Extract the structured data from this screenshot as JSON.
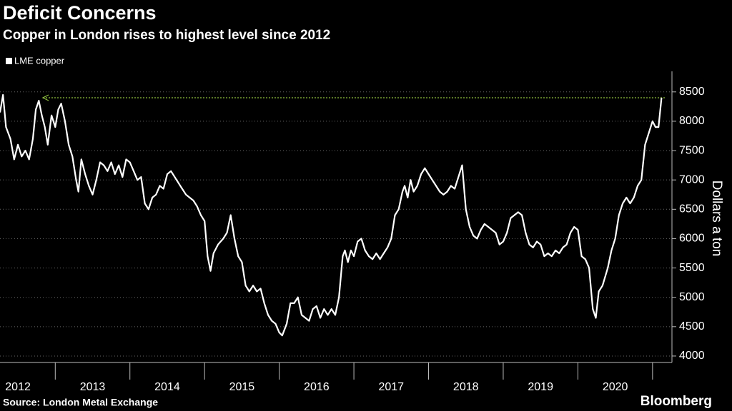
{
  "chart_data": {
    "type": "line",
    "title": "Deficit Concerns",
    "subtitle": "Copper in London rises to highest level since 2012",
    "y_label": "Dollars a ton",
    "source": "Source: London Metal Exchange",
    "brand": "Bloomberg",
    "xlim": [
      2012.26,
      2021.26
    ],
    "ylim": [
      3890,
      8850
    ],
    "yticks": [
      4000,
      4500,
      5000,
      5500,
      6000,
      6500,
      7000,
      7500,
      8000,
      8500
    ],
    "xticks": [
      {
        "value": 2012.5,
        "label": "2012"
      },
      {
        "value": 2013.5,
        "label": "2013"
      },
      {
        "value": 2014.5,
        "label": "2014"
      },
      {
        "value": 2015.5,
        "label": "2015"
      },
      {
        "value": 2016.5,
        "label": "2016"
      },
      {
        "value": 2017.5,
        "label": "2017"
      },
      {
        "value": 2018.5,
        "label": "2018"
      },
      {
        "value": 2019.5,
        "label": "2019"
      },
      {
        "value": 2020.5,
        "label": "2020"
      }
    ],
    "grid": true,
    "reference_line": {
      "value": 8400,
      "color": "#8fbf3f"
    },
    "x": [
      2012.26,
      2012.3,
      2012.34,
      2012.4,
      2012.45,
      2012.5,
      2012.55,
      2012.6,
      2012.65,
      2012.7,
      2012.74,
      2012.78,
      2012.82,
      2012.86,
      2012.9,
      2012.95,
      2013.0,
      2013.04,
      2013.08,
      2013.13,
      2013.18,
      2013.23,
      2013.28,
      2013.31,
      2013.35,
      2013.4,
      2013.45,
      2013.5,
      2013.55,
      2013.6,
      2013.65,
      2013.7,
      2013.75,
      2013.8,
      2013.85,
      2013.9,
      2013.95,
      2014.0,
      2014.05,
      2014.1,
      2014.15,
      2014.2,
      2014.25,
      2014.3,
      2014.35,
      2014.4,
      2014.45,
      2014.5,
      2014.55,
      2014.6,
      2014.65,
      2014.7,
      2014.75,
      2014.8,
      2014.85,
      2014.9,
      2014.95,
      2015.0,
      2015.04,
      2015.08,
      2015.12,
      2015.18,
      2015.25,
      2015.3,
      2015.35,
      2015.4,
      2015.45,
      2015.5,
      2015.55,
      2015.6,
      2015.65,
      2015.7,
      2015.75,
      2015.8,
      2015.85,
      2015.9,
      2015.95,
      2016.0,
      2016.04,
      2016.1,
      2016.15,
      2016.2,
      2016.25,
      2016.3,
      2016.35,
      2016.4,
      2016.45,
      2016.5,
      2016.55,
      2016.6,
      2016.65,
      2016.7,
      2016.75,
      2016.8,
      2016.85,
      2016.88,
      2016.92,
      2016.96,
      2017.0,
      2017.05,
      2017.1,
      2017.15,
      2017.2,
      2017.25,
      2017.3,
      2017.35,
      2017.4,
      2017.45,
      2017.5,
      2017.55,
      2017.6,
      2017.65,
      2017.68,
      2017.72,
      2017.76,
      2017.8,
      2017.85,
      2017.9,
      2017.95,
      2018.0,
      2018.05,
      2018.1,
      2018.15,
      2018.2,
      2018.25,
      2018.3,
      2018.35,
      2018.4,
      2018.45,
      2018.5,
      2018.55,
      2018.6,
      2018.65,
      2018.7,
      2018.75,
      2018.8,
      2018.85,
      2018.9,
      2018.95,
      2019.0,
      2019.05,
      2019.1,
      2019.15,
      2019.2,
      2019.25,
      2019.3,
      2019.35,
      2019.4,
      2019.45,
      2019.5,
      2019.55,
      2019.6,
      2019.65,
      2019.7,
      2019.75,
      2019.8,
      2019.85,
      2019.9,
      2019.95,
      2020.0,
      2020.05,
      2020.1,
      2020.15,
      2020.2,
      2020.24,
      2020.28,
      2020.33,
      2020.4,
      2020.45,
      2020.5,
      2020.55,
      2020.6,
      2020.65,
      2020.7,
      2020.75,
      2020.8,
      2020.85,
      2020.9,
      2020.95,
      2021.0,
      2021.04,
      2021.08,
      2021.12
    ],
    "series": [
      {
        "name": "LME copper",
        "color": "#ffffff",
        "values": [
          8150,
          8450,
          7900,
          7700,
          7350,
          7600,
          7400,
          7500,
          7350,
          7700,
          8200,
          8350,
          8100,
          7900,
          7600,
          8100,
          7900,
          8200,
          8300,
          8000,
          7600,
          7400,
          7000,
          6800,
          7350,
          7100,
          6900,
          6750,
          7000,
          7300,
          7250,
          7150,
          7300,
          7100,
          7250,
          7050,
          7350,
          7300,
          7150,
          7000,
          7050,
          6600,
          6500,
          6700,
          6750,
          6900,
          6850,
          7100,
          7150,
          7050,
          6950,
          6850,
          6750,
          6700,
          6650,
          6550,
          6400,
          6300,
          5700,
          5450,
          5750,
          5900,
          6000,
          6100,
          6400,
          6000,
          5700,
          5600,
          5200,
          5100,
          5200,
          5100,
          5150,
          4900,
          4700,
          4600,
          4550,
          4400,
          4350,
          4550,
          4900,
          4900,
          5000,
          4700,
          4650,
          4600,
          4800,
          4850,
          4650,
          4800,
          4700,
          4800,
          4700,
          5000,
          5700,
          5800,
          5600,
          5800,
          5700,
          5950,
          6000,
          5800,
          5700,
          5650,
          5750,
          5650,
          5750,
          5850,
          6000,
          6400,
          6500,
          6800,
          6900,
          6700,
          7000,
          6800,
          6900,
          7100,
          7200,
          7100,
          7000,
          6900,
          6800,
          6750,
          6800,
          6900,
          6850,
          7050,
          7250,
          6500,
          6200,
          6050,
          6000,
          6150,
          6250,
          6200,
          6150,
          6100,
          5900,
          5950,
          6100,
          6350,
          6400,
          6450,
          6400,
          6100,
          5900,
          5850,
          5950,
          5900,
          5700,
          5750,
          5700,
          5800,
          5750,
          5850,
          5900,
          6100,
          6200,
          6150,
          5700,
          5650,
          5500,
          4800,
          4650,
          5100,
          5200,
          5500,
          5800,
          6000,
          6400,
          6600,
          6700,
          6600,
          6700,
          6900,
          7000,
          7600,
          7800,
          8000,
          7900,
          7900,
          8400
        ]
      }
    ]
  }
}
